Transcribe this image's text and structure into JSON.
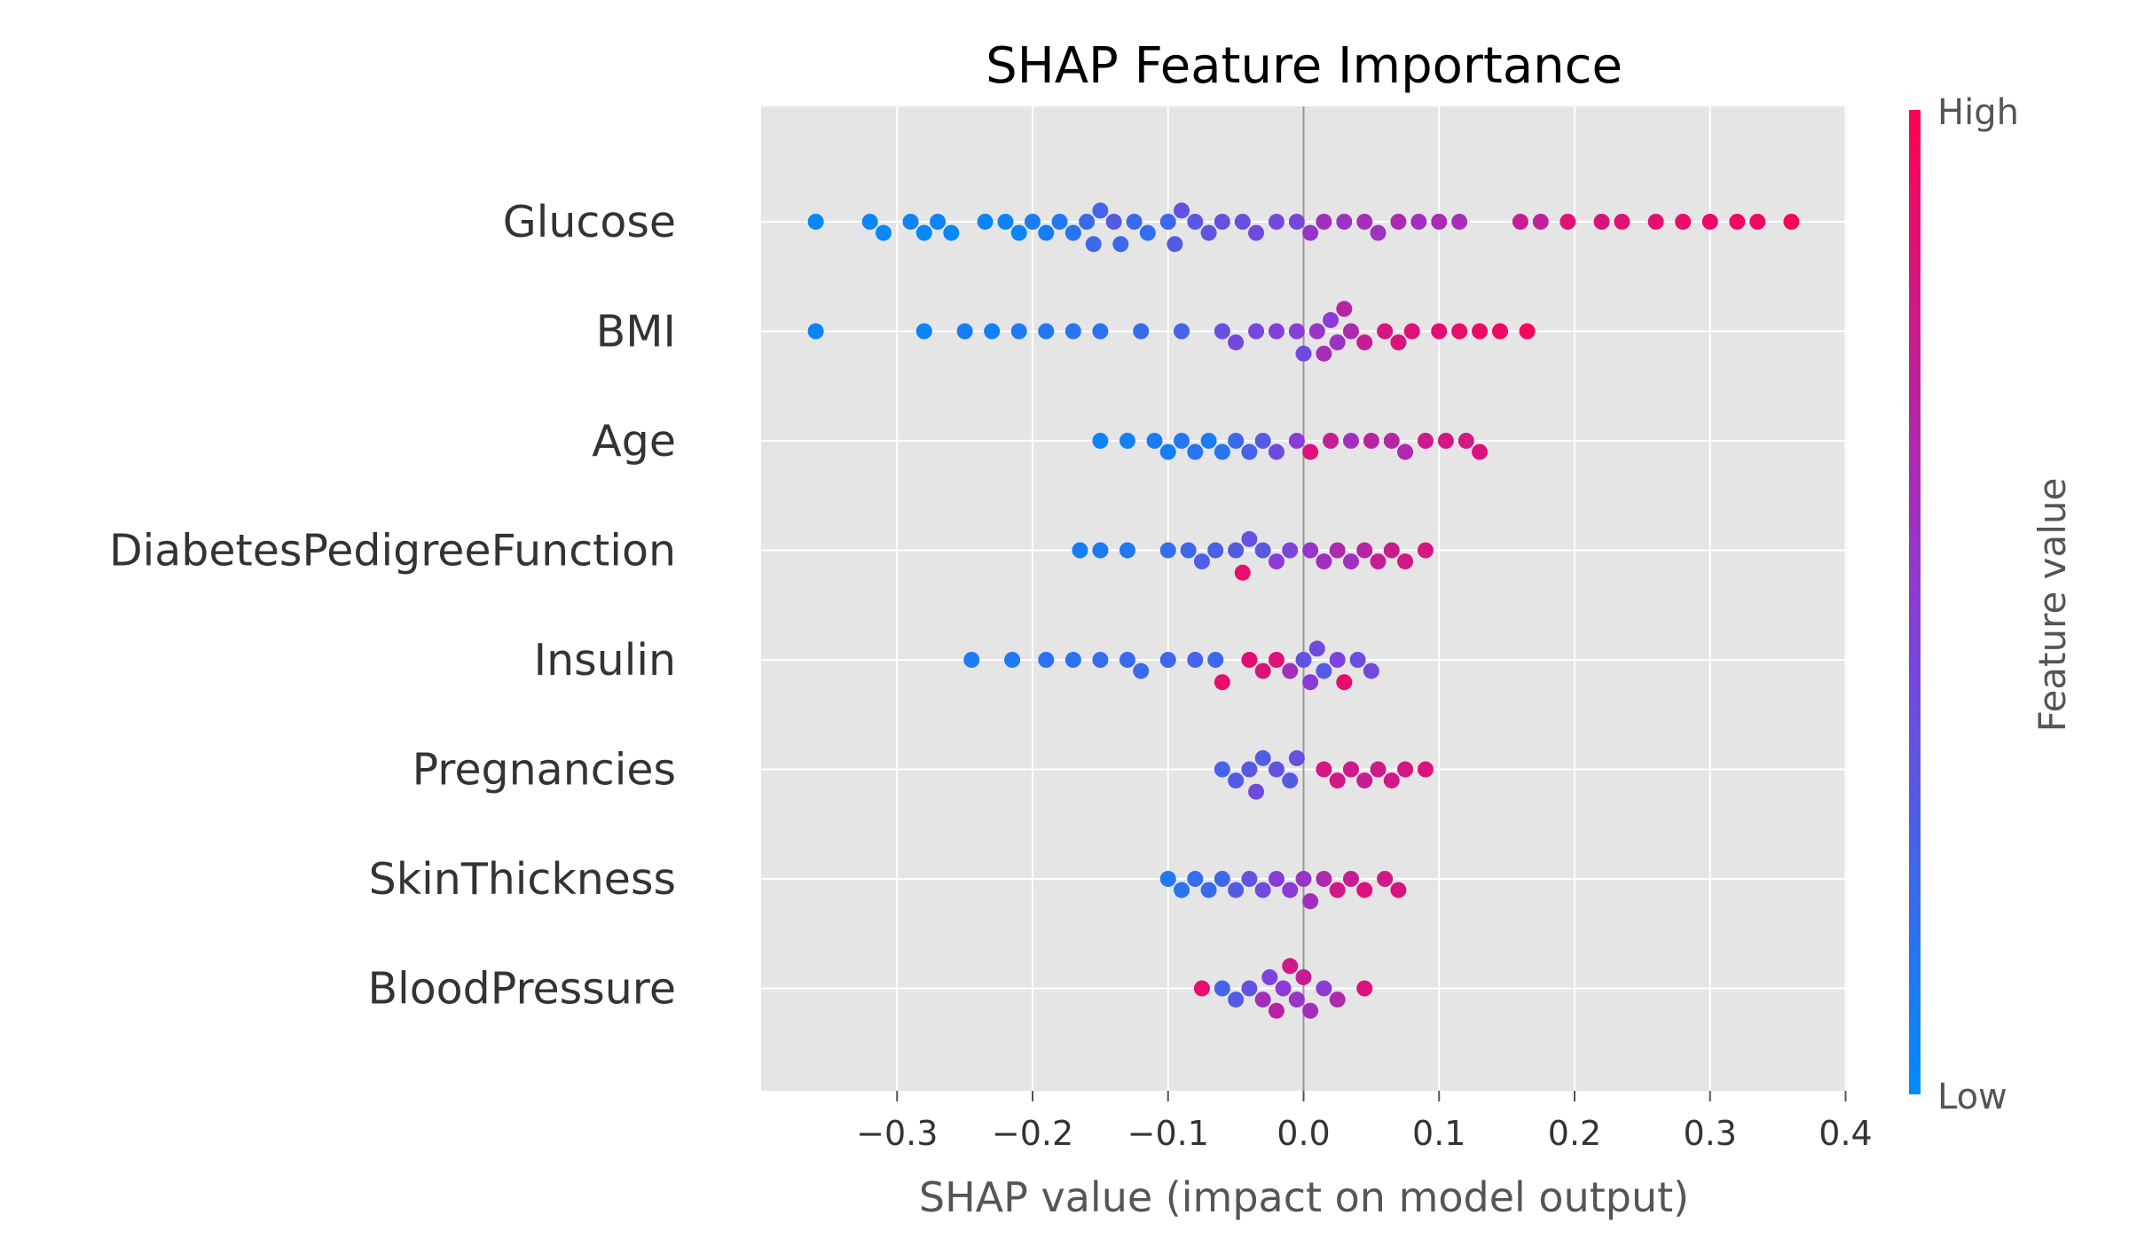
{
  "chart_data": {
    "type": "scatter",
    "subtype": "shap-beeswarm",
    "title": "SHAP Feature Importance",
    "xlabel": "SHAP value (impact on model output)",
    "xlim": [
      -0.395,
      0.4
    ],
    "xticks": [
      -0.3,
      -0.2,
      -0.1,
      0.0,
      0.1,
      0.2,
      0.3,
      0.4
    ],
    "xtick_labels": [
      "−0.3",
      "−0.2",
      "−0.1",
      "0.0",
      "0.1",
      "0.2",
      "0.3",
      "0.4"
    ],
    "grid": true,
    "colorbar": {
      "title": "Feature value",
      "high_label": "High",
      "low_label": "Low",
      "low_color": "#008bfb",
      "mid_color": "#8b3bd6",
      "high_color": "#ff0052"
    },
    "features": [
      {
        "name": "Glucose",
        "points": [
          [
            -0.36,
            0.02
          ],
          [
            -0.32,
            0.04
          ],
          [
            -0.31,
            0.02
          ],
          [
            -0.29,
            0.05
          ],
          [
            -0.28,
            0.01
          ],
          [
            -0.27,
            0.04
          ],
          [
            -0.26,
            0.02
          ],
          [
            -0.235,
            0.03
          ],
          [
            -0.22,
            0.05
          ],
          [
            -0.21,
            0.04
          ],
          [
            -0.2,
            0.1
          ],
          [
            -0.19,
            0.08
          ],
          [
            -0.18,
            0.12
          ],
          [
            -0.17,
            0.15
          ],
          [
            -0.16,
            0.2
          ],
          [
            -0.155,
            0.22
          ],
          [
            -0.15,
            0.25
          ],
          [
            -0.14,
            0.3
          ],
          [
            -0.135,
            0.22
          ],
          [
            -0.125,
            0.2
          ],
          [
            -0.115,
            0.18
          ],
          [
            -0.1,
            0.22
          ],
          [
            -0.095,
            0.3
          ],
          [
            -0.09,
            0.35
          ],
          [
            -0.08,
            0.32
          ],
          [
            -0.07,
            0.34
          ],
          [
            -0.06,
            0.36
          ],
          [
            -0.045,
            0.38
          ],
          [
            -0.035,
            0.4
          ],
          [
            -0.02,
            0.42
          ],
          [
            -0.005,
            0.42
          ],
          [
            0.005,
            0.55
          ],
          [
            0.015,
            0.6
          ],
          [
            0.03,
            0.56
          ],
          [
            0.045,
            0.62
          ],
          [
            0.055,
            0.58
          ],
          [
            0.07,
            0.64
          ],
          [
            0.085,
            0.6
          ],
          [
            0.1,
            0.63
          ],
          [
            0.115,
            0.62
          ],
          [
            0.16,
            0.75
          ],
          [
            0.175,
            0.72
          ],
          [
            0.195,
            0.86
          ],
          [
            0.22,
            0.84
          ],
          [
            0.235,
            0.86
          ],
          [
            0.26,
            0.88
          ],
          [
            0.28,
            0.9
          ],
          [
            0.3,
            0.92
          ],
          [
            0.32,
            0.93
          ],
          [
            0.335,
            0.95
          ],
          [
            0.36,
            0.97
          ]
        ]
      },
      {
        "name": "BMI",
        "points": [
          [
            -0.36,
            0.05
          ],
          [
            -0.28,
            0.05
          ],
          [
            -0.25,
            0.08
          ],
          [
            -0.23,
            0.06
          ],
          [
            -0.21,
            0.1
          ],
          [
            -0.19,
            0.12
          ],
          [
            -0.17,
            0.14
          ],
          [
            -0.15,
            0.15
          ],
          [
            -0.12,
            0.2
          ],
          [
            -0.09,
            0.25
          ],
          [
            -0.06,
            0.38
          ],
          [
            -0.05,
            0.42
          ],
          [
            -0.035,
            0.44
          ],
          [
            -0.02,
            0.46
          ],
          [
            -0.005,
            0.48
          ],
          [
            0.0,
            0.4
          ],
          [
            0.01,
            0.55
          ],
          [
            0.015,
            0.62
          ],
          [
            0.02,
            0.5
          ],
          [
            0.025,
            0.58
          ],
          [
            0.03,
            0.7
          ],
          [
            0.035,
            0.65
          ],
          [
            0.045,
            0.75
          ],
          [
            0.06,
            0.82
          ],
          [
            0.07,
            0.84
          ],
          [
            0.08,
            0.86
          ],
          [
            0.1,
            0.88
          ],
          [
            0.115,
            0.9
          ],
          [
            0.13,
            0.92
          ],
          [
            0.145,
            0.94
          ],
          [
            0.165,
            0.96
          ]
        ]
      },
      {
        "name": "Age",
        "points": [
          [
            -0.15,
            0.05
          ],
          [
            -0.13,
            0.07
          ],
          [
            -0.11,
            0.1
          ],
          [
            -0.1,
            0.08
          ],
          [
            -0.09,
            0.12
          ],
          [
            -0.08,
            0.15
          ],
          [
            -0.07,
            0.1
          ],
          [
            -0.06,
            0.14
          ],
          [
            -0.05,
            0.2
          ],
          [
            -0.04,
            0.25
          ],
          [
            -0.03,
            0.3
          ],
          [
            -0.02,
            0.4
          ],
          [
            -0.005,
            0.5
          ],
          [
            0.005,
            0.85
          ],
          [
            0.02,
            0.75
          ],
          [
            0.035,
            0.6
          ],
          [
            0.05,
            0.7
          ],
          [
            0.065,
            0.68
          ],
          [
            0.075,
            0.65
          ],
          [
            0.09,
            0.78
          ],
          [
            0.105,
            0.82
          ],
          [
            0.12,
            0.8
          ],
          [
            0.13,
            0.85
          ]
        ]
      },
      {
        "name": "DiabetesPedigreeFunction",
        "points": [
          [
            -0.165,
            0.08
          ],
          [
            -0.15,
            0.1
          ],
          [
            -0.13,
            0.12
          ],
          [
            -0.1,
            0.18
          ],
          [
            -0.085,
            0.22
          ],
          [
            -0.075,
            0.28
          ],
          [
            -0.065,
            0.26
          ],
          [
            -0.05,
            0.3
          ],
          [
            -0.045,
            0.9
          ],
          [
            -0.04,
            0.35
          ],
          [
            -0.03,
            0.32
          ],
          [
            -0.02,
            0.5
          ],
          [
            -0.01,
            0.45
          ],
          [
            0.005,
            0.55
          ],
          [
            0.015,
            0.6
          ],
          [
            0.025,
            0.65
          ],
          [
            0.035,
            0.58
          ],
          [
            0.045,
            0.7
          ],
          [
            0.055,
            0.75
          ],
          [
            0.065,
            0.78
          ],
          [
            0.075,
            0.8
          ],
          [
            0.09,
            0.82
          ]
        ]
      },
      {
        "name": "Insulin",
        "points": [
          [
            -0.245,
            0.1
          ],
          [
            -0.215,
            0.12
          ],
          [
            -0.19,
            0.15
          ],
          [
            -0.17,
            0.16
          ],
          [
            -0.15,
            0.18
          ],
          [
            -0.13,
            0.2
          ],
          [
            -0.12,
            0.22
          ],
          [
            -0.1,
            0.23
          ],
          [
            -0.08,
            0.25
          ],
          [
            -0.065,
            0.22
          ],
          [
            -0.06,
            0.9
          ],
          [
            -0.04,
            0.88
          ],
          [
            -0.03,
            0.85
          ],
          [
            -0.02,
            0.86
          ],
          [
            -0.01,
            0.6
          ],
          [
            0.0,
            0.35
          ],
          [
            0.005,
            0.5
          ],
          [
            0.01,
            0.4
          ],
          [
            0.015,
            0.3
          ],
          [
            0.025,
            0.45
          ],
          [
            0.03,
            0.9
          ],
          [
            0.04,
            0.38
          ],
          [
            0.05,
            0.42
          ]
        ]
      },
      {
        "name": "Pregnancies",
        "points": [
          [
            -0.06,
            0.25
          ],
          [
            -0.05,
            0.3
          ],
          [
            -0.04,
            0.32
          ],
          [
            -0.035,
            0.4
          ],
          [
            -0.03,
            0.28
          ],
          [
            -0.02,
            0.35
          ],
          [
            -0.01,
            0.3
          ],
          [
            -0.005,
            0.38
          ],
          [
            0.015,
            0.82
          ],
          [
            0.025,
            0.8
          ],
          [
            0.035,
            0.78
          ],
          [
            0.045,
            0.75
          ],
          [
            0.055,
            0.78
          ],
          [
            0.065,
            0.8
          ],
          [
            0.075,
            0.82
          ],
          [
            0.09,
            0.84
          ]
        ]
      },
      {
        "name": "SkinThickness",
        "points": [
          [
            -0.1,
            0.12
          ],
          [
            -0.09,
            0.15
          ],
          [
            -0.08,
            0.18
          ],
          [
            -0.07,
            0.2
          ],
          [
            -0.06,
            0.22
          ],
          [
            -0.05,
            0.3
          ],
          [
            -0.04,
            0.35
          ],
          [
            -0.03,
            0.4
          ],
          [
            -0.02,
            0.48
          ],
          [
            -0.01,
            0.5
          ],
          [
            0.0,
            0.55
          ],
          [
            0.005,
            0.6
          ],
          [
            0.015,
            0.65
          ],
          [
            0.025,
            0.8
          ],
          [
            0.035,
            0.75
          ],
          [
            0.045,
            0.85
          ],
          [
            0.06,
            0.8
          ],
          [
            0.07,
            0.82
          ]
        ]
      },
      {
        "name": "BloodPressure",
        "points": [
          [
            -0.075,
            0.9
          ],
          [
            -0.06,
            0.25
          ],
          [
            -0.05,
            0.3
          ],
          [
            -0.04,
            0.35
          ],
          [
            -0.03,
            0.6
          ],
          [
            -0.025,
            0.45
          ],
          [
            -0.02,
            0.7
          ],
          [
            -0.015,
            0.5
          ],
          [
            -0.01,
            0.8
          ],
          [
            -0.005,
            0.55
          ],
          [
            0.0,
            0.75
          ],
          [
            0.005,
            0.6
          ],
          [
            0.015,
            0.5
          ],
          [
            0.025,
            0.65
          ],
          [
            0.045,
            0.85
          ]
        ]
      }
    ]
  }
}
